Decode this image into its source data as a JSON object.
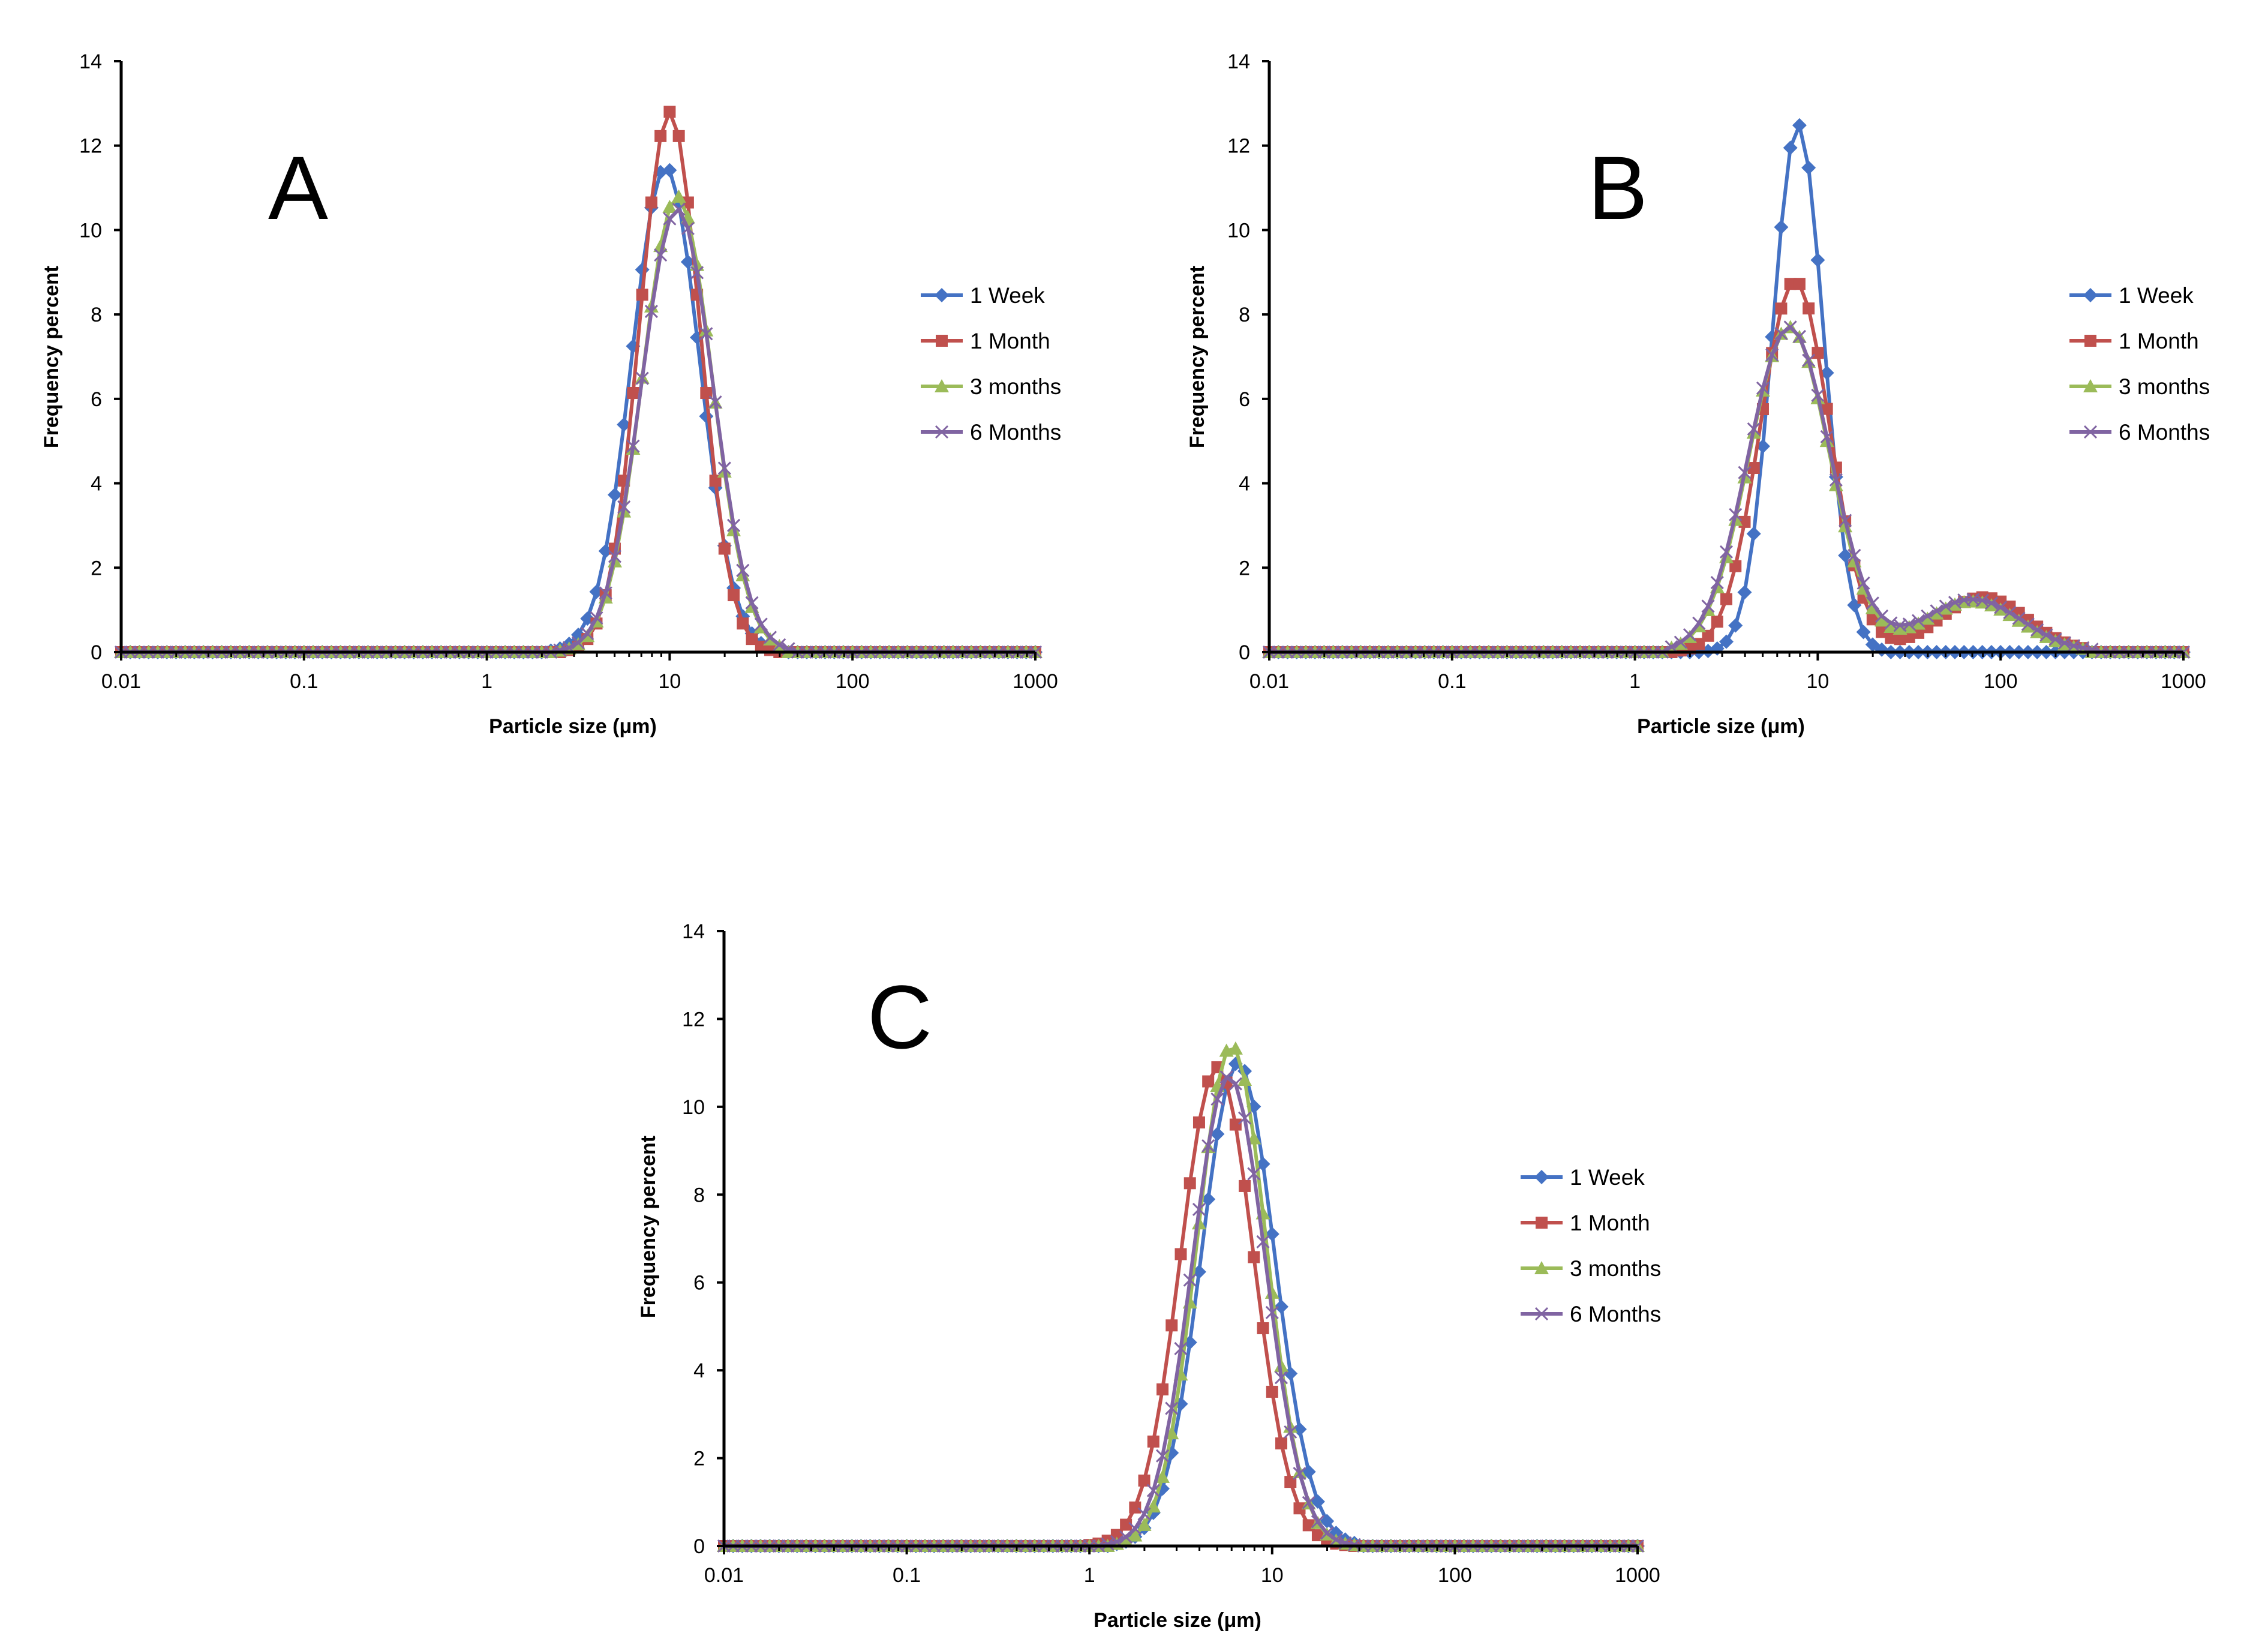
{
  "chart_data": [
    {
      "type": "line",
      "panel_label": "A",
      "xscale": "log",
      "xlim": [
        0.01,
        1000
      ],
      "ylim": [
        0,
        14
      ],
      "xticks": [
        "0.01",
        "0.1",
        "1",
        "10",
        "100",
        "1000"
      ],
      "yticks": [
        "0",
        "2",
        "4",
        "6",
        "8",
        "10",
        "12",
        "14"
      ],
      "xlabel": "Particle size (μm)",
      "ylabel": "Frequency percent",
      "legend_position": "right",
      "series": [
        {
          "name": "1 Week",
          "color": "#4472C4",
          "marker": "diamond",
          "peak": {
            "x": 9.5,
            "y": 11.5
          },
          "sigma": 0.185,
          "x_start": 2.2,
          "x_end": 40,
          "secondary_peak": null
        },
        {
          "name": "1 Month",
          "color": "#C0504D",
          "marker": "square",
          "peak": {
            "x": 10.0,
            "y": 12.8
          },
          "sigma": 0.165,
          "x_start": 2.2,
          "x_end": 40,
          "secondary_peak": null
        },
        {
          "name": "3 months",
          "color": "#9BBB59",
          "marker": "triangle",
          "peak": {
            "x": 11.0,
            "y": 10.8
          },
          "sigma": 0.19,
          "x_start": 2.2,
          "x_end": 40,
          "secondary_peak": null
        },
        {
          "name": "6 Months",
          "color": "#8064A2",
          "marker": "x",
          "peak": {
            "x": 11.0,
            "y": 10.5
          },
          "sigma": 0.195,
          "x_start": 2.2,
          "x_end": 45,
          "secondary_peak": null
        }
      ]
    },
    {
      "type": "line",
      "panel_label": "B",
      "xscale": "log",
      "xlim": [
        0.01,
        1000
      ],
      "ylim": [
        0,
        14
      ],
      "xticks": [
        "0.01",
        "0.1",
        "1",
        "10",
        "100",
        "1000"
      ],
      "yticks": [
        "0",
        "2",
        "4",
        "6",
        "8",
        "10",
        "12",
        "14"
      ],
      "xlabel": "Particle size (μm)",
      "ylabel": "Frequency percent",
      "legend_position": "right",
      "series": [
        {
          "name": "1 Week",
          "color": "#4472C4",
          "marker": "diamond",
          "peak": {
            "x": 7.8,
            "y": 12.5
          },
          "sigma": 0.14,
          "x_start": 1.5,
          "x_end": 300,
          "secondary_peak": null
        },
        {
          "name": "1 Month",
          "color": "#C0504D",
          "marker": "square",
          "peak": {
            "x": 7.5,
            "y": 8.8
          },
          "sigma": 0.19,
          "x_start": 1.5,
          "x_end": 300,
          "secondary_peak": {
            "x": 80,
            "y": 1.3,
            "sigma": 0.24
          }
        },
        {
          "name": "3 months",
          "color": "#9BBB59",
          "marker": "triangle",
          "peak": {
            "x": 7.0,
            "y": 7.7
          },
          "sigma": 0.22,
          "x_start": 1.5,
          "x_end": 300,
          "secondary_peak": {
            "x": 70,
            "y": 1.2,
            "sigma": 0.26
          }
        },
        {
          "name": "6 Months",
          "color": "#8064A2",
          "marker": "x",
          "peak": {
            "x": 7.0,
            "y": 7.7
          },
          "sigma": 0.225,
          "x_start": 1.5,
          "x_end": 340,
          "secondary_peak": {
            "x": 70,
            "y": 1.25,
            "sigma": 0.27
          }
        }
      ]
    },
    {
      "type": "line",
      "panel_label": "C",
      "xscale": "log",
      "xlim": [
        0.01,
        1000
      ],
      "ylim": [
        0,
        14
      ],
      "xticks": [
        "0.01",
        "0.1",
        "1",
        "10",
        "100",
        "1000"
      ],
      "yticks": [
        "0",
        "2",
        "4",
        "6",
        "8",
        "10",
        "12",
        "14"
      ],
      "xlabel": "Particle size (μm)",
      "ylabel": "Frequency percent",
      "legend_position": "right",
      "series": [
        {
          "name": "1 Week",
          "color": "#4472C4",
          "marker": "diamond",
          "peak": {
            "x": 6.5,
            "y": 11.0
          },
          "sigma": 0.2,
          "x_start": 1.0,
          "x_end": 30,
          "secondary_peak": null
        },
        {
          "name": "1 Month",
          "color": "#C0504D",
          "marker": "square",
          "peak": {
            "x": 5.0,
            "y": 10.9
          },
          "sigma": 0.2,
          "x_start": 1.0,
          "x_end": 30,
          "secondary_peak": null
        },
        {
          "name": "3 months",
          "color": "#9BBB59",
          "marker": "triangle",
          "peak": {
            "x": 6.0,
            "y": 11.4
          },
          "sigma": 0.19,
          "x_start": 1.0,
          "x_end": 60,
          "secondary_peak": null
        },
        {
          "name": "6 Months",
          "color": "#8064A2",
          "marker": "x",
          "peak": {
            "x": 5.8,
            "y": 10.7
          },
          "sigma": 0.2,
          "x_start": 1.0,
          "x_end": 30,
          "secondary_peak": null
        }
      ]
    }
  ]
}
